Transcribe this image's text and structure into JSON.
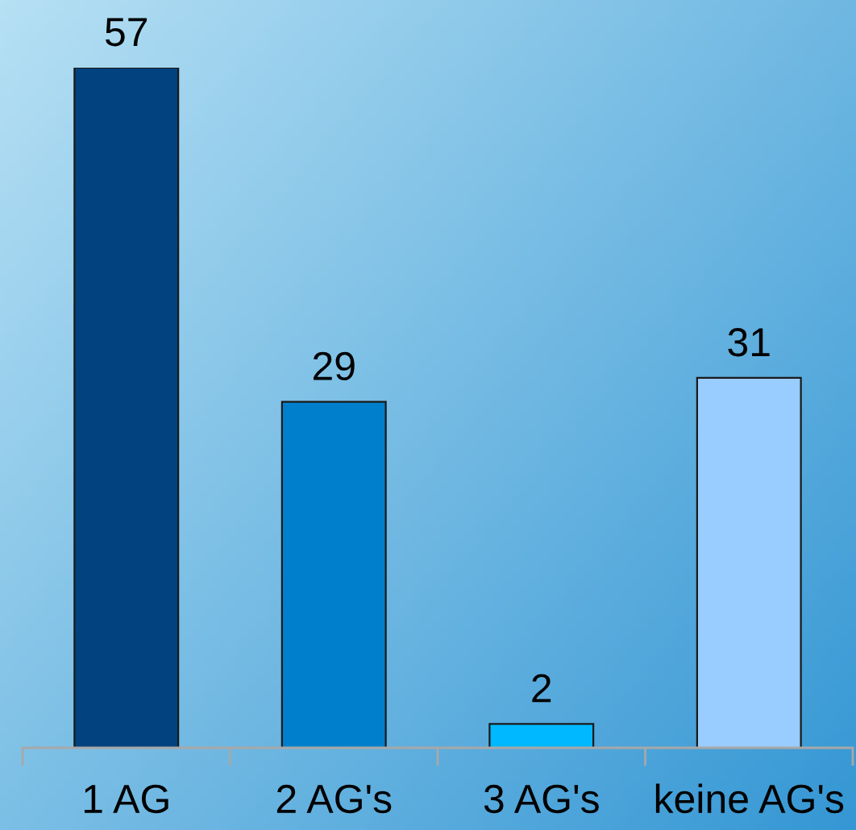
{
  "chart_data": {
    "type": "bar",
    "categories": [
      "1 AG",
      "2 AG's",
      "3 AG's",
      "keine AG's"
    ],
    "values": [
      57,
      29,
      2,
      31
    ],
    "colors": [
      "#02427f",
      "#0080cc",
      "#00b8ff",
      "#99ccff"
    ],
    "data_labels": true,
    "tick_labels": "x"
  }
}
